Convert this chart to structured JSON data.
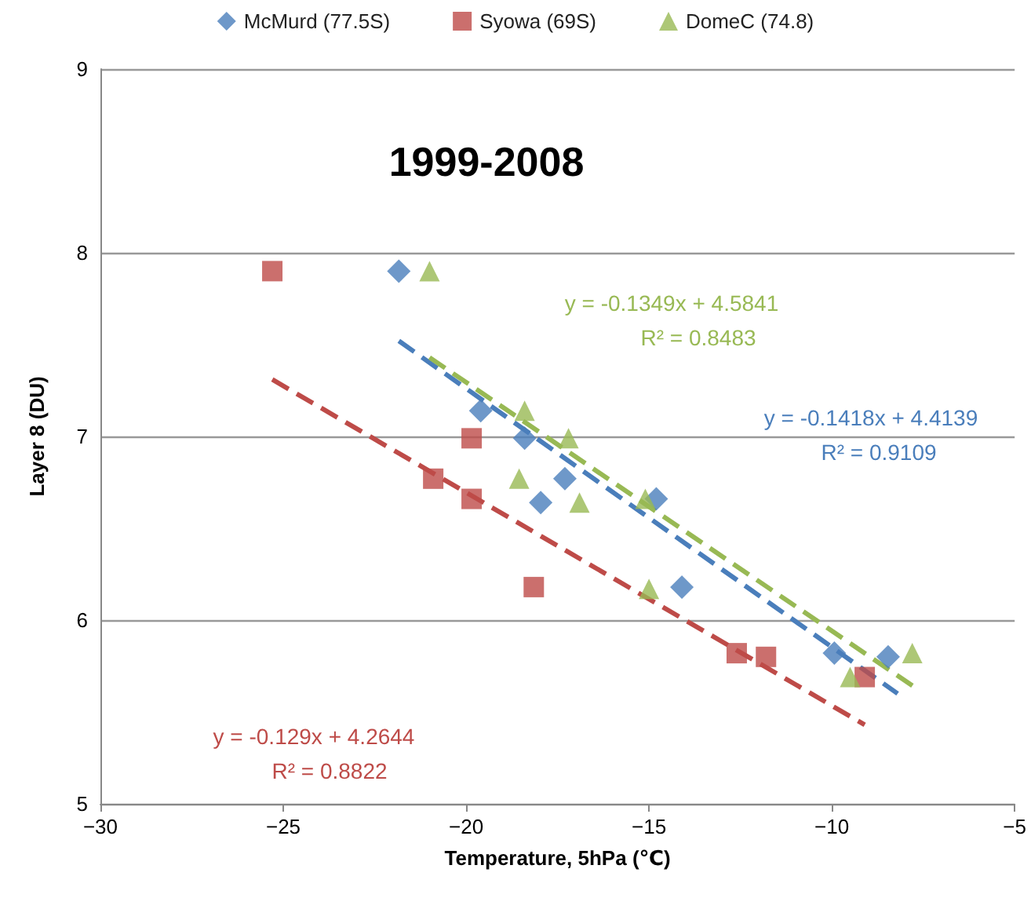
{
  "chart_data": {
    "type": "scatter",
    "title": "1999-2008",
    "xlabel": "Temperature, 5hPa (℃)",
    "ylabel": "Layer 8 (DU)",
    "xlim": [
      -30,
      -5
    ],
    "xticks": [
      {
        "value": -30,
        "label": "−30"
      },
      {
        "value": -25,
        "label": "−25"
      },
      {
        "value": -20,
        "label": "−20"
      },
      {
        "value": -15,
        "label": "−15"
      },
      {
        "value": -10,
        "label": "−10"
      },
      {
        "value": -5,
        "label": "−5"
      }
    ],
    "ylim": [
      5,
      9
    ],
    "yticks": [
      5,
      6,
      7,
      8,
      9
    ],
    "grid": "y",
    "legend": "top",
    "series": [
      {
        "name": "McMurd (77.5S)",
        "color": "#4a7ebb",
        "marker": "diamond",
        "x": [
          -21.84,
          -19.6,
          -18.4,
          -17.96,
          -17.3,
          -14.8,
          -14.1,
          -9.93,
          -8.46
        ],
        "values": [
          7.9,
          7.14,
          6.99,
          6.64,
          6.77,
          6.66,
          6.18,
          5.82,
          5.8
        ]
      },
      {
        "name": "Syowa (69S)",
        "color": "#be4b48",
        "marker": "square",
        "x": [
          -25.3,
          -20.9,
          -19.85,
          -19.85,
          -18.15,
          -12.6,
          -11.8,
          -9.1
        ],
        "values": [
          7.9,
          6.77,
          6.99,
          6.66,
          6.18,
          5.82,
          5.8,
          5.69
        ]
      },
      {
        "name": "DomeC (74.8)",
        "color": "#98b954",
        "marker": "triangle",
        "x": [
          -21.0,
          -18.4,
          -17.2,
          -18.55,
          -16.9,
          -15.1,
          -15.0,
          -9.5,
          -7.8
        ],
        "values": [
          7.9,
          7.14,
          6.99,
          6.77,
          6.64,
          6.66,
          6.17,
          5.69,
          5.82
        ]
      },
      {
        "type": "line",
        "color": "#4a7ebb",
        "line_style": "dashed",
        "marker": "none",
        "x": [
          -21.84,
          -8.2
        ],
        "values": [
          7.52,
          5.6
        ]
      },
      {
        "type": "line",
        "color": "#be4b48",
        "line_style": "dashed",
        "marker": "none",
        "x": [
          -25.3,
          -9.1
        ],
        "values": [
          7.31,
          5.43
        ]
      },
      {
        "type": "line",
        "color": "#98b954",
        "line_style": "dashed",
        "marker": "none",
        "x": [
          -21.0,
          -7.7
        ],
        "values": [
          7.43,
          5.63
        ]
      }
    ],
    "annotations": [
      "y = -0.1418x + 4.4139",
      "R² = 0.9109",
      "y = -0.129x + 4.2644",
      "R² = 0.8822",
      "y = -0.1349x + 4.5841",
      "R² = 0.8483"
    ]
  }
}
